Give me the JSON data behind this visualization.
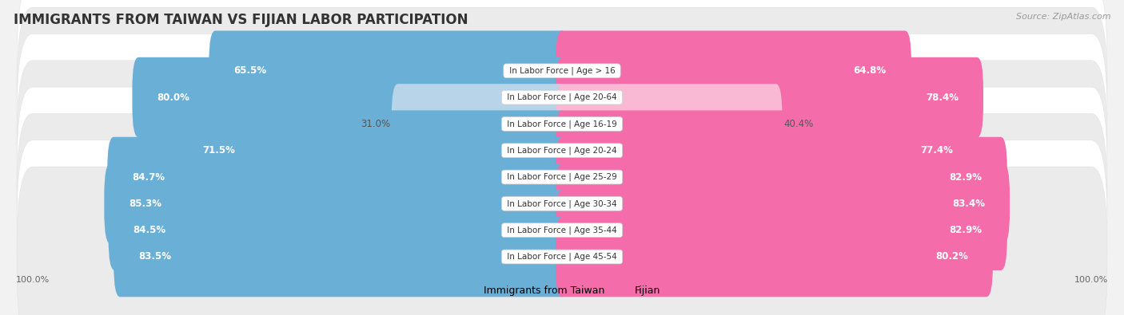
{
  "title": "IMMIGRANTS FROM TAIWAN VS FIJIAN LABOR PARTICIPATION",
  "source": "Source: ZipAtlas.com",
  "categories": [
    "In Labor Force | Age > 16",
    "In Labor Force | Age 20-64",
    "In Labor Force | Age 16-19",
    "In Labor Force | Age 20-24",
    "In Labor Force | Age 25-29",
    "In Labor Force | Age 30-34",
    "In Labor Force | Age 35-44",
    "In Labor Force | Age 45-54"
  ],
  "taiwan_values": [
    65.5,
    80.0,
    31.0,
    71.5,
    84.7,
    85.3,
    84.5,
    83.5
  ],
  "fijian_values": [
    64.8,
    78.4,
    40.4,
    77.4,
    82.9,
    83.4,
    82.9,
    80.2
  ],
  "taiwan_color": "#6aafd6",
  "taiwan_color_light": "#b8d4e8",
  "fijian_color": "#f46daa",
  "fijian_color_light": "#f9b8d4",
  "bar_height": 0.62,
  "background_color": "#f2f2f2",
  "row_even_color": "#ffffff",
  "row_odd_color": "#ebebeb",
  "max_value": 100.0,
  "legend_taiwan": "Immigrants from Taiwan",
  "legend_fijian": "Fijian",
  "title_fontsize": 12,
  "label_fontsize": 8.5,
  "cat_fontsize": 7.5,
  "axis_fontsize": 8,
  "source_fontsize": 8
}
